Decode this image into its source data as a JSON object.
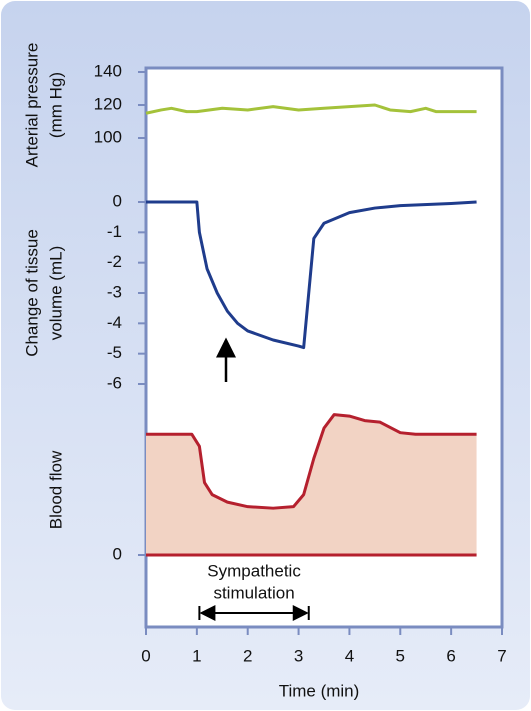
{
  "chart_data": [
    {
      "type": "line",
      "ylabel": [
        "Arterial pressure",
        "(mm Hg)"
      ],
      "color": "#a4c23a",
      "x": [
        0,
        0.3,
        0.5,
        0.8,
        1,
        1.5,
        2,
        2.5,
        3,
        3.5,
        4,
        4.5,
        4.8,
        5.2,
        5.5,
        5.7,
        6,
        6.5
      ],
      "values": [
        115,
        117,
        118,
        116,
        116,
        118,
        117,
        119,
        117,
        118,
        119,
        120,
        117,
        116,
        118,
        116,
        116,
        116
      ],
      "xlim": [
        0,
        7
      ],
      "ylim": [
        100,
        140
      ],
      "yticks": [
        100,
        120,
        140
      ]
    },
    {
      "type": "line",
      "ylabel": [
        "Change of tissue",
        "volume (mL)"
      ],
      "color": "#1f3c8c",
      "x": [
        0,
        1,
        1.05,
        1.2,
        1.4,
        1.6,
        1.8,
        2,
        2.5,
        3,
        3.1,
        3.3,
        3.5,
        4,
        4.5,
        5,
        6,
        6.5
      ],
      "values": [
        0,
        0,
        -1,
        -2.2,
        -3,
        -3.6,
        -4,
        -4.25,
        -4.55,
        -4.75,
        -4.8,
        -1.2,
        -0.7,
        -0.35,
        -0.2,
        -0.12,
        -0.05,
        0
      ],
      "xlim": [
        0,
        7
      ],
      "ylim": [
        -6,
        0
      ],
      "yticks": [
        -6,
        -5,
        -4,
        -3,
        -2,
        -1,
        0
      ]
    },
    {
      "type": "area",
      "ylabel": [
        "Blood flow"
      ],
      "color": "#b5202e",
      "fill": "#f2d3c4",
      "x": [
        0,
        0.9,
        1.05,
        1.15,
        1.3,
        1.6,
        2,
        2.5,
        2.9,
        3.1,
        3.3,
        3.5,
        3.7,
        4,
        4.3,
        4.6,
        5,
        5.3,
        6.5
      ],
      "values": [
        4,
        4,
        3.6,
        2.4,
        2,
        1.75,
        1.6,
        1.55,
        1.6,
        2,
        3.2,
        4.2,
        4.65,
        4.6,
        4.45,
        4.4,
        4.05,
        4,
        4
      ],
      "xlim": [
        0,
        7
      ],
      "ylim": [
        0,
        5
      ],
      "yticks": [
        0
      ],
      "xticks": [
        0,
        1,
        2,
        3,
        4,
        5,
        6,
        7
      ],
      "xlabel": "Time (min)",
      "annotation": {
        "text": [
          "Sympathetic",
          "stimulation"
        ],
        "x": [
          1.05,
          3.2
        ]
      }
    }
  ]
}
